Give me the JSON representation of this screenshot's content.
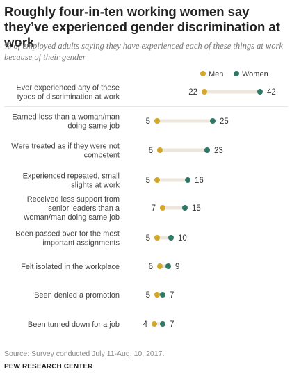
{
  "title": "Roughly four-in-ten working women say they’ve experienced gender discrimination at work",
  "subtitle": "% of employed adults saying they have experienced each of these things at work because of their gender",
  "source": "Source: Survey conducted July 11-Aug. 10, 2017.",
  "credit": "PEW RESEARCH CENTER",
  "colors": {
    "men": "#d3a72a",
    "women": "#2f7866",
    "track": "#ece6dc",
    "separator": "#cfcfcf"
  },
  "chart_data": {
    "type": "dot",
    "categories": [
      [
        "Ever experienced any of these",
        "types of discrimination at work"
      ],
      [
        "Earned less than a woman/man",
        "doing same job"
      ],
      [
        "Were treated as if they were not",
        "competent"
      ],
      [
        "Experienced repeated, small",
        "slights at work"
      ],
      [
        "Received less support from",
        "senior leaders than a",
        "woman/man doing same job"
      ],
      [
        "Been passed over for the most",
        "important assignments"
      ],
      [
        "Felt isolated in the workplace"
      ],
      [
        "Been denied a promotion"
      ],
      [
        "Been turned down for a job"
      ]
    ],
    "series": [
      {
        "name": "Men",
        "values": [
          22,
          5,
          6,
          5,
          7,
          5,
          6,
          5,
          4
        ]
      },
      {
        "name": "Women",
        "values": [
          42,
          25,
          23,
          16,
          15,
          10,
          9,
          7,
          7
        ]
      }
    ]
  }
}
